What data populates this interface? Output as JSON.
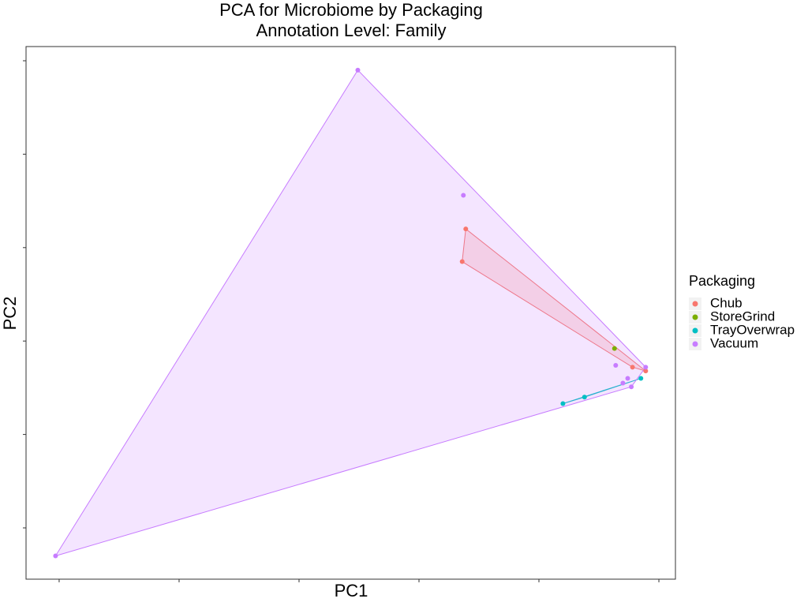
{
  "chart_data": {
    "type": "scatter-hull",
    "title": "PCA for Microbiome by Packaging",
    "subtitle": "Annotation Level: Family",
    "x_label": "PC1",
    "y_label": "PC2",
    "legend_title": "Packaging",
    "legend_position": "right",
    "xlim": [
      -0.276,
      5.138
    ],
    "ylim": [
      -0.549,
      5.152
    ],
    "xticks": [
      0,
      1,
      2,
      3,
      4,
      5
    ],
    "yticks": [
      0,
      1,
      2,
      3,
      4,
      5
    ],
    "hull": true,
    "series": [
      {
        "name": "Chub",
        "color": "#F8766D",
        "x": [
          3.39,
          3.36,
          4.78,
          4.89
        ],
        "values": [
          3.2,
          2.85,
          1.72,
          1.68
        ]
      },
      {
        "name": "StoreGrind",
        "color": "#7CAE00",
        "x": [
          4.63
        ],
        "values": [
          1.92
        ]
      },
      {
        "name": "TrayOverwrap",
        "color": "#00BFC4",
        "x": [
          4.2,
          4.38,
          4.85
        ],
        "values": [
          1.33,
          1.4,
          1.6
        ]
      },
      {
        "name": "Vacuum",
        "color": "#C77CFF",
        "x": [
          2.49,
          3.37,
          -0.03,
          4.64,
          4.89,
          4.74,
          4.7,
          4.77
        ],
        "values": [
          4.9,
          3.56,
          -0.3,
          1.74,
          1.72,
          1.6,
          1.55,
          1.51
        ]
      }
    ]
  }
}
